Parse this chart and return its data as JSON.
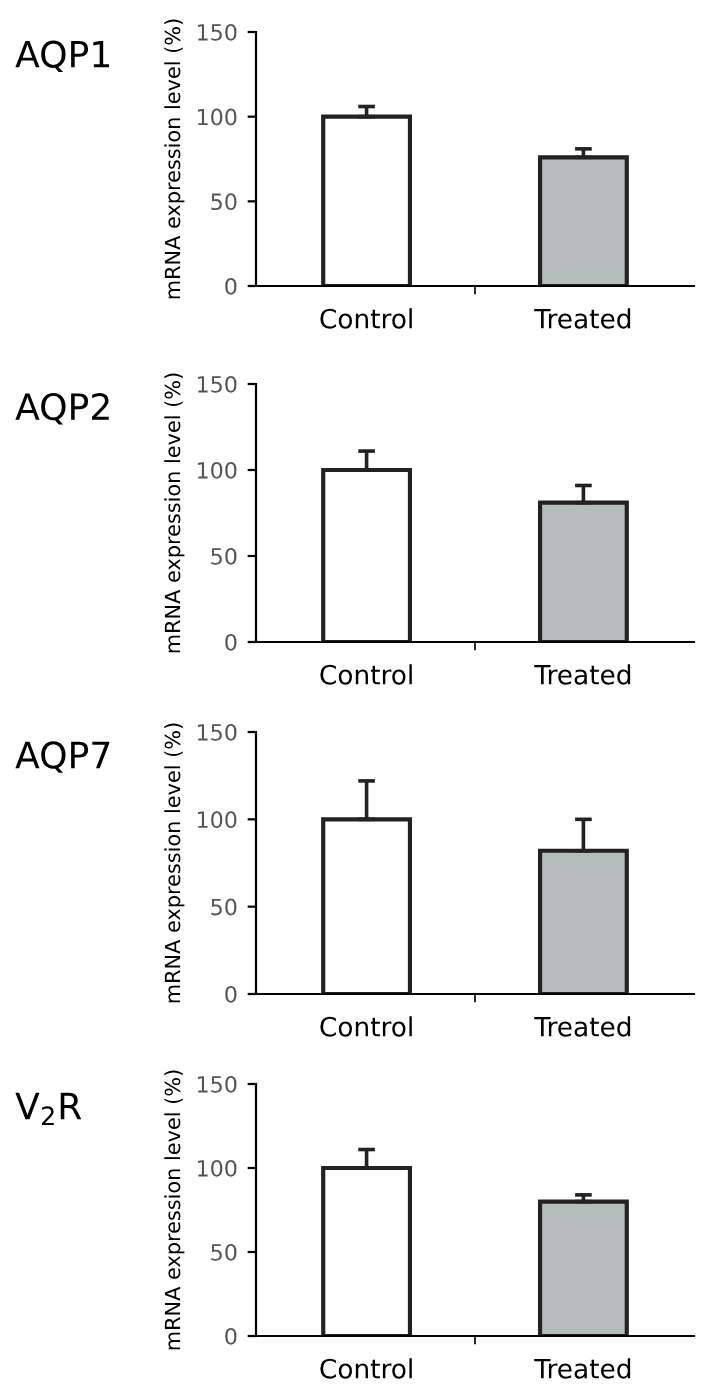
{
  "chart_data": [
    {
      "type": "bar",
      "title": "AQP1",
      "ylabel": "mRNA expression level (%)",
      "categories": [
        "Control",
        "Treated"
      ],
      "values": [
        100,
        76
      ],
      "colors": [
        "#ffffff",
        "#b4bcbc"
      ],
      "errors": [
        [
          100,
          106
        ],
        [
          76,
          81
        ]
      ],
      "ylim": [
        0,
        150
      ],
      "yticks": [
        0,
        50,
        100,
        150
      ],
      "grid": false,
      "legend": false
    },
    {
      "type": "bar",
      "title": "AQP2",
      "ylabel": "mRNA expression level (%)",
      "categories": [
        "Control",
        "Treated"
      ],
      "values": [
        100,
        81
      ],
      "colors": [
        "#ffffff",
        "#b4bcbc"
      ],
      "errors": [
        [
          100,
          111
        ],
        [
          81,
          91
        ]
      ],
      "ylim": [
        0,
        150
      ],
      "yticks": [
        0,
        50,
        100,
        150
      ],
      "grid": false,
      "legend": false
    },
    {
      "type": "bar",
      "title": "AQP7",
      "ylabel": "mRNA expression level (%)",
      "categories": [
        "Control",
        "Treated"
      ],
      "values": [
        100,
        82
      ],
      "colors": [
        "#ffffff",
        "#b4bcbc"
      ],
      "errors": [
        [
          100,
          122
        ],
        [
          82,
          100
        ]
      ],
      "ylim": [
        0,
        150
      ],
      "yticks": [
        0,
        50,
        100,
        150
      ],
      "grid": false,
      "legend": false
    },
    {
      "type": "bar",
      "title": "V$_{2}$R",
      "ylabel": "mRNA expression level (%)",
      "categories": [
        "Control",
        "Treated"
      ],
      "values": [
        100,
        80
      ],
      "colors": [
        "#ffffff",
        "#b4bcbc"
      ],
      "errors": [
        [
          100,
          111
        ],
        [
          80,
          84
        ]
      ],
      "ylim": [
        0,
        150
      ],
      "yticks": [
        0,
        50,
        100,
        150
      ],
      "grid": false,
      "legend": false
    }
  ]
}
